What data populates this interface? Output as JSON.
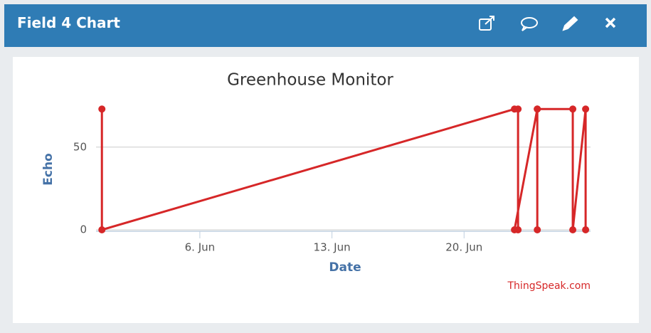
{
  "panel": {
    "title": "Field 4 Chart"
  },
  "chart_data": {
    "type": "line",
    "title": "Greenhouse Monitor",
    "x_label": "Date",
    "y_label": "Echo",
    "credit": "ThingSpeak.com",
    "x": [
      0.81,
      0.81,
      22.67,
      22.86,
      22.86,
      22.67,
      23.88,
      23.88,
      23.88,
      25.76,
      25.76,
      26.44,
      26.44
    ],
    "series": [
      {
        "name": "Echo",
        "color": "#d62728",
        "values": [
          73,
          0,
          73,
          73,
          0,
          0,
          73,
          0,
          73,
          73,
          0,
          73,
          0
        ]
      }
    ],
    "xlim": [
      0.5,
      26.7
    ],
    "xticks": [
      {
        "value": 6,
        "label": "6. Jun"
      },
      {
        "value": 13,
        "label": "13. Jun"
      },
      {
        "value": 20,
        "label": "20. Jun"
      }
    ],
    "ylim": [
      0,
      80
    ],
    "yticks": [
      0,
      50
    ],
    "grid": true
  }
}
